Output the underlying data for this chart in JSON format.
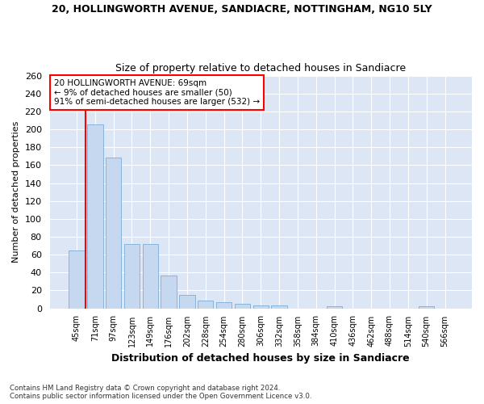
{
  "title": "20, HOLLINGWORTH AVENUE, SANDIACRE, NOTTINGHAM, NG10 5LY",
  "subtitle": "Size of property relative to detached houses in Sandiacre",
  "xlabel": "Distribution of detached houses by size in Sandiacre",
  "ylabel": "Number of detached properties",
  "bar_color": "#c5d8f0",
  "bar_edge_color": "#7aadd4",
  "background_color": "#dce6f5",
  "grid_color": "#ffffff",
  "annotation_line1": "20 HOLLINGWORTH AVENUE: 69sqm",
  "annotation_line2": "← 9% of detached houses are smaller (50)",
  "annotation_line3": "91% of semi-detached houses are larger (532) →",
  "categories": [
    "45sqm",
    "71sqm",
    "97sqm",
    "123sqm",
    "149sqm",
    "176sqm",
    "202sqm",
    "228sqm",
    "254sqm",
    "280sqm",
    "306sqm",
    "332sqm",
    "358sqm",
    "384sqm",
    "410sqm",
    "436sqm",
    "462sqm",
    "488sqm",
    "514sqm",
    "540sqm",
    "566sqm"
  ],
  "values": [
    65,
    205,
    168,
    72,
    72,
    37,
    15,
    9,
    7,
    5,
    3,
    3,
    0,
    0,
    2,
    0,
    0,
    0,
    0,
    2,
    0
  ],
  "ylim": [
    0,
    260
  ],
  "yticks": [
    0,
    20,
    40,
    60,
    80,
    100,
    120,
    140,
    160,
    180,
    200,
    220,
    240,
    260
  ],
  "footnote": "Contains HM Land Registry data © Crown copyright and database right 2024.\nContains public sector information licensed under the Open Government Licence v3.0.",
  "red_line_color": "#ff0000",
  "annotation_box_edge_color": "#ff0000",
  "fig_bg": "#ffffff"
}
